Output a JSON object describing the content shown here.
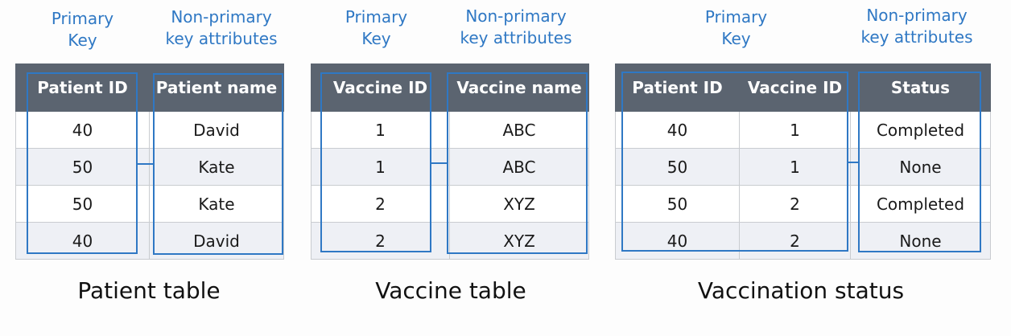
{
  "labels": {
    "primary_key": "Primary\nKey",
    "non_primary": "Non-primary\nkey attributes"
  },
  "patient_table": {
    "caption": "Patient table",
    "headers": [
      "Patient ID",
      "Patient name"
    ],
    "rows": [
      [
        "40",
        "David"
      ],
      [
        "50",
        "Kate"
      ],
      [
        "50",
        "Kate"
      ],
      [
        "40",
        "David"
      ]
    ]
  },
  "vaccine_table": {
    "caption": "Vaccine table",
    "headers": [
      "Vaccine ID",
      "Vaccine name"
    ],
    "rows": [
      [
        "1",
        "ABC"
      ],
      [
        "1",
        "ABC"
      ],
      [
        "2",
        "XYZ"
      ],
      [
        "2",
        "XYZ"
      ]
    ]
  },
  "status_table": {
    "caption": "Vaccination status",
    "headers": [
      "Patient ID",
      "Vaccine ID",
      "Status"
    ],
    "rows": [
      [
        "40",
        "1",
        "Completed"
      ],
      [
        "50",
        "1",
        "None"
      ],
      [
        "50",
        "2",
        "Completed"
      ],
      [
        "40",
        "2",
        "None"
      ]
    ]
  },
  "colors": {
    "accent": "#2f78c4",
    "header_bg": "#5b6470",
    "stripe": "#eef0f5"
  }
}
